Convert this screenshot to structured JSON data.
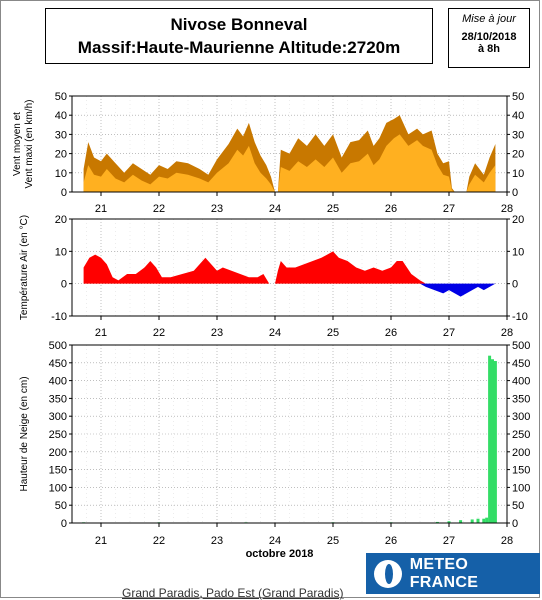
{
  "header": {
    "title": "Nivose Bonneval",
    "subtitle": "Massif:Haute-Maurienne Altitude:2720m",
    "update_label": "Mise à jour",
    "update_date": "28/10/2018",
    "update_time": "à 8h"
  },
  "logo": {
    "text": "METEO FRANCE"
  },
  "footer": {
    "link_text": "Grand Paradis, Pado Est (Grand Paradis)"
  },
  "colors": {
    "wind_max": "#c87800",
    "wind_avg": "#ffb020",
    "temp_pos": "#ff0000",
    "temp_neg": "#0000e6",
    "snow": "#33dd66",
    "grid": "#999999"
  },
  "chart_data": [
    {
      "type": "area",
      "id": "wind",
      "ylabel": "Vent moyen et Vent maxi (en km/h)",
      "ylim": [
        0,
        50
      ],
      "yticks": [
        0,
        10,
        20,
        30,
        40,
        50
      ],
      "x_ticks": [
        "21",
        "22",
        "23",
        "24",
        "25",
        "26",
        "27",
        "28"
      ],
      "x_unit": "days since 20/10/2018 00h",
      "grid": true,
      "series": [
        {
          "name": "Vent maxi",
          "points": [
            [
              0.7,
              12
            ],
            [
              0.78,
              26
            ],
            [
              0.88,
              18
            ],
            [
              1.0,
              16
            ],
            [
              1.1,
              20
            ],
            [
              1.25,
              15
            ],
            [
              1.4,
              10
            ],
            [
              1.55,
              15
            ],
            [
              1.7,
              12
            ],
            [
              1.85,
              9
            ],
            [
              2.0,
              14
            ],
            [
              2.15,
              12
            ],
            [
              2.3,
              16
            ],
            [
              2.5,
              15
            ],
            [
              2.7,
              12
            ],
            [
              2.85,
              9
            ],
            [
              3.0,
              17
            ],
            [
              3.2,
              25
            ],
            [
              3.35,
              33
            ],
            [
              3.45,
              29
            ],
            [
              3.55,
              36
            ],
            [
              3.65,
              26
            ],
            [
              3.75,
              19
            ],
            [
              3.85,
              14
            ],
            [
              3.93,
              8
            ],
            [
              4.0,
              0
            ],
            [
              4.05,
              0
            ],
            [
              4.1,
              22
            ],
            [
              4.25,
              20
            ],
            [
              4.4,
              28
            ],
            [
              4.55,
              24
            ],
            [
              4.7,
              30
            ],
            [
              4.85,
              24
            ],
            [
              5.0,
              30
            ],
            [
              5.15,
              18
            ],
            [
              5.3,
              26
            ],
            [
              5.45,
              27
            ],
            [
              5.6,
              32
            ],
            [
              5.7,
              24
            ],
            [
              5.8,
              28
            ],
            [
              5.92,
              36
            ],
            [
              6.05,
              38
            ],
            [
              6.15,
              40
            ],
            [
              6.3,
              30
            ],
            [
              6.45,
              33
            ],
            [
              6.55,
              30
            ],
            [
              6.7,
              32
            ],
            [
              6.8,
              20
            ],
            [
              6.9,
              15
            ],
            [
              7.0,
              16
            ],
            [
              7.05,
              2
            ],
            [
              7.1,
              0
            ],
            [
              7.3,
              0
            ],
            [
              7.35,
              8
            ],
            [
              7.45,
              15
            ],
            [
              7.6,
              9
            ],
            [
              7.7,
              18
            ],
            [
              7.8,
              25
            ]
          ]
        },
        {
          "name": "Vent moyen",
          "points": [
            [
              0.7,
              5
            ],
            [
              0.78,
              14
            ],
            [
              0.88,
              9
            ],
            [
              1.0,
              8
            ],
            [
              1.1,
              12
            ],
            [
              1.25,
              7
            ],
            [
              1.4,
              5
            ],
            [
              1.55,
              9
            ],
            [
              1.7,
              6
            ],
            [
              1.85,
              4
            ],
            [
              2.0,
              8
            ],
            [
              2.15,
              7
            ],
            [
              2.3,
              10
            ],
            [
              2.5,
              9
            ],
            [
              2.7,
              7
            ],
            [
              2.85,
              5
            ],
            [
              3.0,
              10
            ],
            [
              3.2,
              15
            ],
            [
              3.35,
              22
            ],
            [
              3.45,
              19
            ],
            [
              3.55,
              24
            ],
            [
              3.65,
              15
            ],
            [
              3.75,
              10
            ],
            [
              3.85,
              7
            ],
            [
              3.93,
              4
            ],
            [
              4.0,
              0
            ],
            [
              4.05,
              0
            ],
            [
              4.1,
              13
            ],
            [
              4.25,
              11
            ],
            [
              4.4,
              16
            ],
            [
              4.55,
              13
            ],
            [
              4.7,
              17
            ],
            [
              4.85,
              13
            ],
            [
              5.0,
              18
            ],
            [
              5.15,
              10
            ],
            [
              5.3,
              15
            ],
            [
              5.45,
              16
            ],
            [
              5.6,
              20
            ],
            [
              5.7,
              14
            ],
            [
              5.8,
              17
            ],
            [
              5.92,
              24
            ],
            [
              6.05,
              28
            ],
            [
              6.15,
              30
            ],
            [
              6.3,
              24
            ],
            [
              6.45,
              27
            ],
            [
              6.55,
              24
            ],
            [
              6.7,
              22
            ],
            [
              6.8,
              14
            ],
            [
              6.9,
              9
            ],
            [
              7.0,
              8
            ],
            [
              7.05,
              1
            ],
            [
              7.1,
              0
            ],
            [
              7.3,
              0
            ],
            [
              7.35,
              4
            ],
            [
              7.45,
              9
            ],
            [
              7.6,
              5
            ],
            [
              7.7,
              10
            ],
            [
              7.8,
              14
            ]
          ]
        }
      ]
    },
    {
      "type": "area",
      "id": "temperature",
      "ylabel": "Température Air (en °C)",
      "ylim": [
        -10,
        20
      ],
      "yticks": [
        -10,
        0,
        10,
        20
      ],
      "x_ticks": [
        "21",
        "22",
        "23",
        "24",
        "25",
        "26",
        "27",
        "28"
      ],
      "grid": true,
      "series": [
        {
          "name": "Température",
          "points": [
            [
              0.7,
              5
            ],
            [
              0.8,
              8
            ],
            [
              0.9,
              9
            ],
            [
              1.0,
              8
            ],
            [
              1.1,
              6
            ],
            [
              1.2,
              2
            ],
            [
              1.3,
              1
            ],
            [
              1.45,
              3
            ],
            [
              1.6,
              3
            ],
            [
              1.75,
              5
            ],
            [
              1.85,
              7
            ],
            [
              1.95,
              5
            ],
            [
              2.05,
              2
            ],
            [
              2.2,
              2
            ],
            [
              2.4,
              3
            ],
            [
              2.6,
              4
            ],
            [
              2.7,
              6
            ],
            [
              2.8,
              8
            ],
            [
              2.9,
              6
            ],
            [
              3.0,
              4
            ],
            [
              3.1,
              5
            ],
            [
              3.25,
              4
            ],
            [
              3.4,
              3
            ],
            [
              3.55,
              2
            ],
            [
              3.7,
              2
            ],
            [
              3.8,
              3
            ],
            [
              3.9,
              0
            ],
            [
              4.0,
              0
            ],
            [
              4.05,
              4
            ],
            [
              4.1,
              7
            ],
            [
              4.2,
              5
            ],
            [
              4.35,
              5
            ],
            [
              4.5,
              6
            ],
            [
              4.65,
              7
            ],
            [
              4.8,
              8
            ],
            [
              4.9,
              9
            ],
            [
              5.0,
              10
            ],
            [
              5.1,
              8
            ],
            [
              5.25,
              7
            ],
            [
              5.4,
              5
            ],
            [
              5.55,
              4
            ],
            [
              5.7,
              5
            ],
            [
              5.85,
              4
            ],
            [
              6.0,
              5
            ],
            [
              6.1,
              7
            ],
            [
              6.2,
              7
            ],
            [
              6.35,
              3
            ],
            [
              6.5,
              1
            ],
            [
              6.6,
              -1
            ],
            [
              6.75,
              -2
            ],
            [
              6.9,
              -3
            ],
            [
              7.0,
              -2
            ],
            [
              7.1,
              -3
            ],
            [
              7.2,
              -4
            ],
            [
              7.3,
              -3
            ],
            [
              7.4,
              -2
            ],
            [
              7.5,
              -1
            ],
            [
              7.6,
              -2
            ],
            [
              7.7,
              -1
            ],
            [
              7.8,
              0
            ]
          ]
        }
      ]
    },
    {
      "type": "bar",
      "id": "snow",
      "ylabel": "Hauteur de Neige (en cm)",
      "xlabel": "octobre 2018",
      "ylim": [
        0,
        500
      ],
      "yticks": [
        0,
        50,
        100,
        150,
        200,
        250,
        300,
        350,
        400,
        450,
        500
      ],
      "x_ticks": [
        "21",
        "22",
        "23",
        "24",
        "25",
        "26",
        "27",
        "28"
      ],
      "grid": true,
      "series": [
        {
          "name": "Hauteur de Neige",
          "points": [
            [
              0.7,
              2
            ],
            [
              2.0,
              2
            ],
            [
              3.5,
              2
            ],
            [
              5.0,
              2
            ],
            [
              6.0,
              2
            ],
            [
              6.8,
              3
            ],
            [
              7.0,
              5
            ],
            [
              7.2,
              8
            ],
            [
              7.4,
              10
            ],
            [
              7.5,
              12
            ],
            [
              7.6,
              12
            ],
            [
              7.65,
              15
            ],
            [
              7.7,
              470
            ],
            [
              7.75,
              460
            ],
            [
              7.8,
              455
            ]
          ]
        }
      ]
    }
  ]
}
